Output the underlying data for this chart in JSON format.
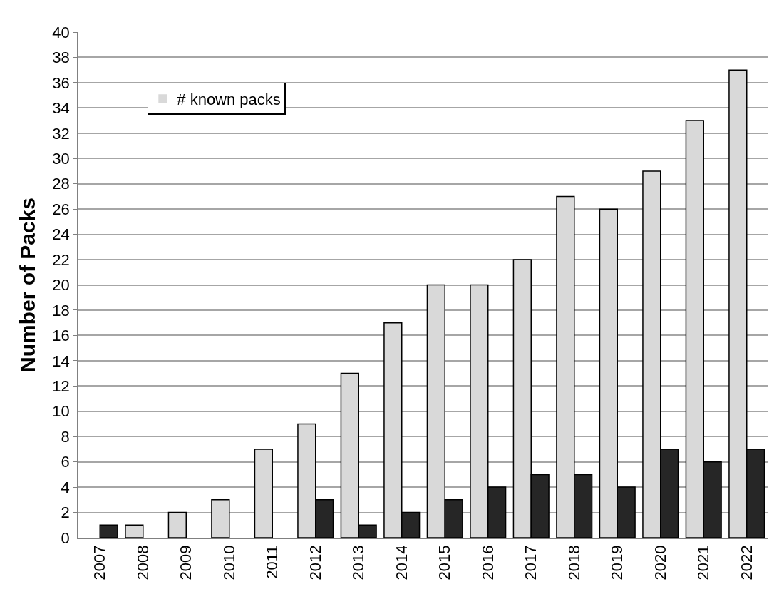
{
  "chart_data": {
    "type": "bar",
    "ylabel": "Number of Packs",
    "categories": [
      "2007",
      "2008",
      "2009",
      "2010",
      "2011",
      "2012",
      "2013",
      "2014",
      "2015",
      "2016",
      "2017",
      "2018",
      "2019",
      "2020",
      "2021",
      "2022"
    ],
    "series": [
      {
        "name": "# known packs",
        "color": "#d9d9d9",
        "values": [
          0,
          1,
          2,
          3,
          7,
          9,
          13,
          17,
          20,
          20,
          22,
          27,
          26,
          29,
          33,
          37
        ]
      },
      {
        "color": "#262626",
        "values": [
          1,
          0,
          0,
          0,
          0,
          3,
          1,
          2,
          3,
          4,
          5,
          5,
          4,
          7,
          6,
          7
        ]
      }
    ],
    "ylim": [
      0,
      40
    ],
    "yticks": [
      0,
      2,
      4,
      6,
      8,
      10,
      12,
      14,
      16,
      18,
      20,
      22,
      24,
      26,
      28,
      30,
      32,
      34,
      36,
      38,
      40
    ],
    "grid": "y",
    "legend": "top left"
  }
}
